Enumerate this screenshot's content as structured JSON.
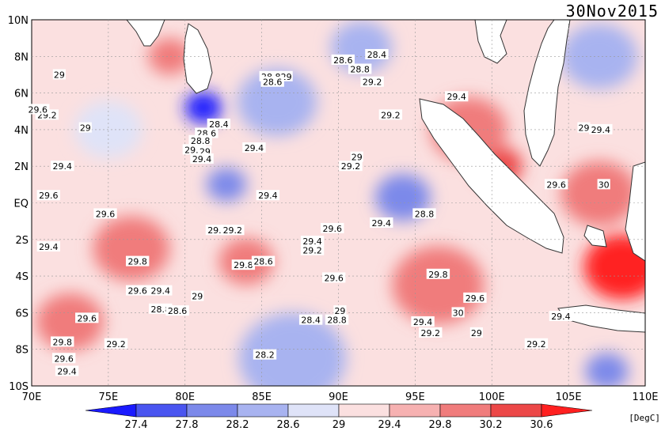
{
  "title": "30Nov2015",
  "units": "[DegC]",
  "lat_labels": [
    "10N",
    "8N",
    "6N",
    "4N",
    "2N",
    "EQ",
    "2S",
    "4S",
    "6S",
    "8S",
    "10S"
  ],
  "lon_labels": [
    "70E",
    "75E",
    "80E",
    "85E",
    "90E",
    "95E",
    "100E",
    "105E",
    "110E"
  ],
  "colorbar": {
    "ticks": [
      "27.4",
      "27.8",
      "28.2",
      "28.6",
      "29",
      "29.4",
      "29.8",
      "30.2",
      "30.6"
    ],
    "colors": [
      "#1a1aff",
      "#4a55f0",
      "#7c89ea",
      "#a8b3f0",
      "#dfe3f8",
      "#fbe0e0",
      "#f6b1b1",
      "#f07c7c",
      "#ec4848",
      "#ff2020"
    ]
  },
  "map": {
    "lon_range": [
      70,
      110
    ],
    "lat_range": [
      -10,
      10
    ],
    "land_color": "#ffffff",
    "contour_labels": [
      {
        "text": "29",
        "lon": 71.8,
        "lat": 7.0
      },
      {
        "text": "29.2",
        "lon": 71.0,
        "lat": 4.8
      },
      {
        "text": "29.6",
        "lon": 70.4,
        "lat": 5.1
      },
      {
        "text": "29",
        "lon": 73.5,
        "lat": 4.1
      },
      {
        "text": "29.4",
        "lon": 72.0,
        "lat": 2.0
      },
      {
        "text": "29.6",
        "lon": 71.1,
        "lat": 0.4
      },
      {
        "text": "29.6",
        "lon": 74.8,
        "lat": -0.6
      },
      {
        "text": "29.4",
        "lon": 71.1,
        "lat": -2.4
      },
      {
        "text": "29.8",
        "lon": 76.9,
        "lat": -3.2
      },
      {
        "text": "29.6",
        "lon": 76.9,
        "lat": -4.8
      },
      {
        "text": "29.4",
        "lon": 78.4,
        "lat": -4.8
      },
      {
        "text": "29",
        "lon": 80.8,
        "lat": -5.1
      },
      {
        "text": "28.8",
        "lon": 78.4,
        "lat": -5.8
      },
      {
        "text": "28.6",
        "lon": 79.5,
        "lat": -5.9
      },
      {
        "text": "29.6",
        "lon": 73.6,
        "lat": -6.3
      },
      {
        "text": "29.8",
        "lon": 72.0,
        "lat": -7.6
      },
      {
        "text": "29.2",
        "lon": 75.5,
        "lat": -7.7
      },
      {
        "text": "29.6",
        "lon": 72.1,
        "lat": -8.5
      },
      {
        "text": "29.4",
        "lon": 72.3,
        "lat": -9.2
      },
      {
        "text": "28.2",
        "lon": 85.2,
        "lat": -8.3
      },
      {
        "text": "28.4",
        "lon": 82.2,
        "lat": 4.3
      },
      {
        "text": "28.6",
        "lon": 81.4,
        "lat": 3.8
      },
      {
        "text": "28.8",
        "lon": 81.0,
        "lat": 3.4
      },
      {
        "text": "29.2",
        "lon": 80.6,
        "lat": 2.9
      },
      {
        "text": "29",
        "lon": 81.3,
        "lat": 2.8
      },
      {
        "text": "29.4",
        "lon": 81.1,
        "lat": 2.4
      },
      {
        "text": "29.4",
        "lon": 84.5,
        "lat": 3.0
      },
      {
        "text": "29.4",
        "lon": 82.1,
        "lat": -1.5
      },
      {
        "text": "29.2",
        "lon": 83.1,
        "lat": -1.5
      },
      {
        "text": "29.8",
        "lon": 83.8,
        "lat": -3.4
      },
      {
        "text": "28.6",
        "lon": 85.1,
        "lat": -3.2
      },
      {
        "text": "29.4",
        "lon": 85.4,
        "lat": 0.4
      },
      {
        "text": "29.4",
        "lon": 88.3,
        "lat": -2.1
      },
      {
        "text": "29.2",
        "lon": 88.3,
        "lat": -2.6
      },
      {
        "text": "29.6",
        "lon": 89.6,
        "lat": -1.4
      },
      {
        "text": "29.6",
        "lon": 89.7,
        "lat": -4.1
      },
      {
        "text": "28.8",
        "lon": 85.6,
        "lat": 6.9
      },
      {
        "text": "29",
        "lon": 86.6,
        "lat": 6.9
      },
      {
        "text": "28.6",
        "lon": 85.7,
        "lat": 6.6
      },
      {
        "text": "28.6",
        "lon": 90.3,
        "lat": 7.8
      },
      {
        "text": "28.4",
        "lon": 92.5,
        "lat": 8.1
      },
      {
        "text": "28.8",
        "lon": 91.4,
        "lat": 7.3
      },
      {
        "text": "29.2",
        "lon": 92.2,
        "lat": 6.6
      },
      {
        "text": "29.2",
        "lon": 93.4,
        "lat": 4.8
      },
      {
        "text": "29.4",
        "lon": 97.7,
        "lat": 5.8
      },
      {
        "text": "29",
        "lon": 91.2,
        "lat": 2.5
      },
      {
        "text": "29.2",
        "lon": 90.8,
        "lat": 2.0
      },
      {
        "text": "28.8",
        "lon": 95.6,
        "lat": -0.6
      },
      {
        "text": "29.4",
        "lon": 92.8,
        "lat": -1.1
      },
      {
        "text": "29.8",
        "lon": 96.5,
        "lat": -3.9
      },
      {
        "text": "29.6",
        "lon": 98.9,
        "lat": -5.2
      },
      {
        "text": "30",
        "lon": 97.8,
        "lat": -6.0
      },
      {
        "text": "29.4",
        "lon": 95.5,
        "lat": -6.5
      },
      {
        "text": "29.2",
        "lon": 96.0,
        "lat": -7.1
      },
      {
        "text": "29",
        "lon": 99.0,
        "lat": -7.1
      },
      {
        "text": "29",
        "lon": 90.1,
        "lat": -5.9
      },
      {
        "text": "28.8",
        "lon": 89.9,
        "lat": -6.4
      },
      {
        "text": "28.4",
        "lon": 88.2,
        "lat": -6.4
      },
      {
        "text": "29.2",
        "lon": 102.9,
        "lat": -7.7
      },
      {
        "text": "29.4",
        "lon": 104.5,
        "lat": -6.2
      },
      {
        "text": "29.6",
        "lon": 104.2,
        "lat": 1.0
      },
      {
        "text": "30",
        "lon": 107.3,
        "lat": 1.0
      },
      {
        "text": "29",
        "lon": 106.0,
        "lat": 4.1
      },
      {
        "text": "29.4",
        "lon": 107.1,
        "lat": 4.0
      }
    ],
    "warm_blobs": [
      {
        "lon": 108.5,
        "lat": -3.5,
        "r": 2.5,
        "level": "30.6"
      },
      {
        "lon": 97.8,
        "lat": -5.3,
        "r": 1.2,
        "level": "30.2"
      },
      {
        "lon": 100.5,
        "lat": 2.0,
        "r": 1.5,
        "level": "30.2"
      },
      {
        "lon": 76.5,
        "lat": -2.5,
        "r": 2.5,
        "level": "29.8"
      },
      {
        "lon": 84.0,
        "lat": -3.2,
        "r": 1.8,
        "level": "29.8"
      },
      {
        "lon": 96.5,
        "lat": -4.5,
        "r": 3.0,
        "level": "29.8"
      },
      {
        "lon": 72.5,
        "lat": -6.5,
        "r": 2.2,
        "level": "29.8"
      },
      {
        "lon": 98.5,
        "lat": 4.0,
        "r": 2.5,
        "level": "29.8"
      },
      {
        "lon": 107.0,
        "lat": 0.5,
        "r": 2.5,
        "level": "29.8"
      },
      {
        "lon": 79.0,
        "lat": 8.0,
        "r": 1.4,
        "level": "29.8"
      }
    ],
    "cool_blobs": [
      {
        "lon": 81.2,
        "lat": 5.2,
        "r": 1.2,
        "level": "27.4"
      },
      {
        "lon": 82.7,
        "lat": 1.0,
        "r": 1.3,
        "level": "28.2"
      },
      {
        "lon": 94.2,
        "lat": 0.3,
        "r": 1.8,
        "level": "28.2"
      },
      {
        "lon": 87.0,
        "lat": -8.5,
        "r": 3.5,
        "level": "28.6"
      },
      {
        "lon": 107.5,
        "lat": -9.2,
        "r": 1.4,
        "level": "28.2"
      },
      {
        "lon": 107.0,
        "lat": 8.0,
        "r": 2.5,
        "level": "28.6"
      },
      {
        "lon": 86.0,
        "lat": 5.5,
        "r": 2.6,
        "level": "28.6"
      },
      {
        "lon": 91.5,
        "lat": 8.5,
        "r": 2.0,
        "level": "28.6"
      },
      {
        "lon": 75.0,
        "lat": 4.0,
        "r": 2.2,
        "level": "29"
      }
    ]
  }
}
